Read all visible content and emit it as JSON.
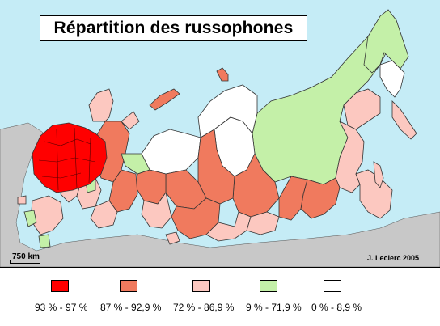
{
  "title": "Répartition des russophones",
  "scale_label": "750 km",
  "credit": "J. Leclerc 2005",
  "legend": [
    {
      "label": "93 % - 97 %",
      "color": "#ff0000"
    },
    {
      "label": "87 % - 92,9 %",
      "color": "#f07a5e"
    },
    {
      "label": "72 % - 86,9 %",
      "color": "#fcc8c0"
    },
    {
      "label": "9 % - 71,9 %",
      "color": "#c4f0a8"
    },
    {
      "label": "0 % - 8,9 %",
      "color": "#ffffff"
    }
  ],
  "colors": {
    "sea": "#c5ecf6",
    "foreign_land": "#c8c8c8"
  }
}
